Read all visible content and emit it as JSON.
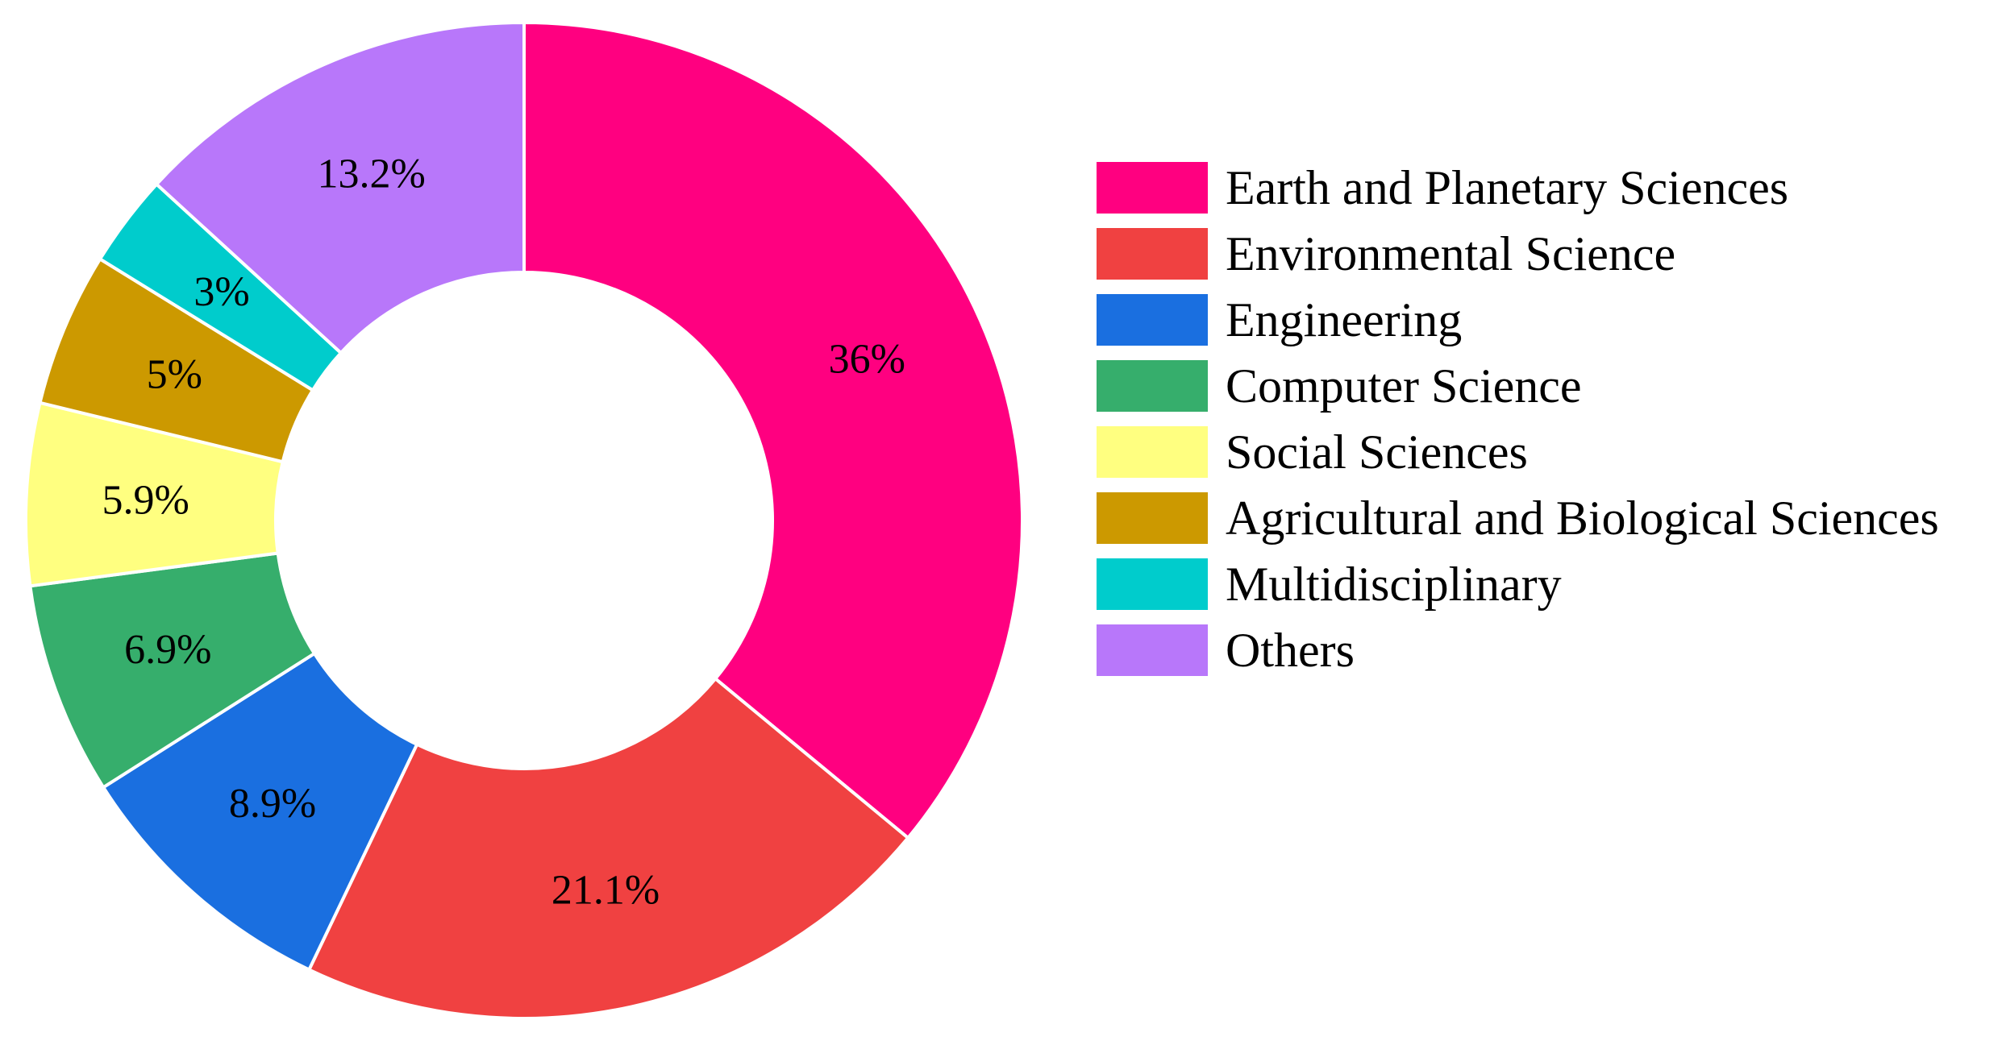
{
  "chart_data": {
    "type": "pie",
    "donut": true,
    "title": "",
    "categories": [
      "Earth and Planetary Sciences",
      "Environmental Science",
      "Engineering",
      "Computer Science",
      "Social Sciences",
      "Agricultural and Biological Sciences",
      "Multidisciplinary",
      "Others"
    ],
    "values": [
      36,
      21.1,
      8.9,
      6.9,
      5.9,
      5,
      3,
      13.2
    ],
    "labels": [
      "36%",
      "21.1%",
      "8.9%",
      "6.9%",
      "5.9%",
      "5%",
      "3%",
      "13.2%"
    ],
    "colors": [
      "#FF0080",
      "#F04141",
      "#1A6FE0",
      "#36AE6C",
      "#FFFF80",
      "#CC9900",
      "#00CCCC",
      "#B877FA"
    ],
    "legend_position": "right",
    "start_angle_deg": 0,
    "direction": "clockwise"
  }
}
